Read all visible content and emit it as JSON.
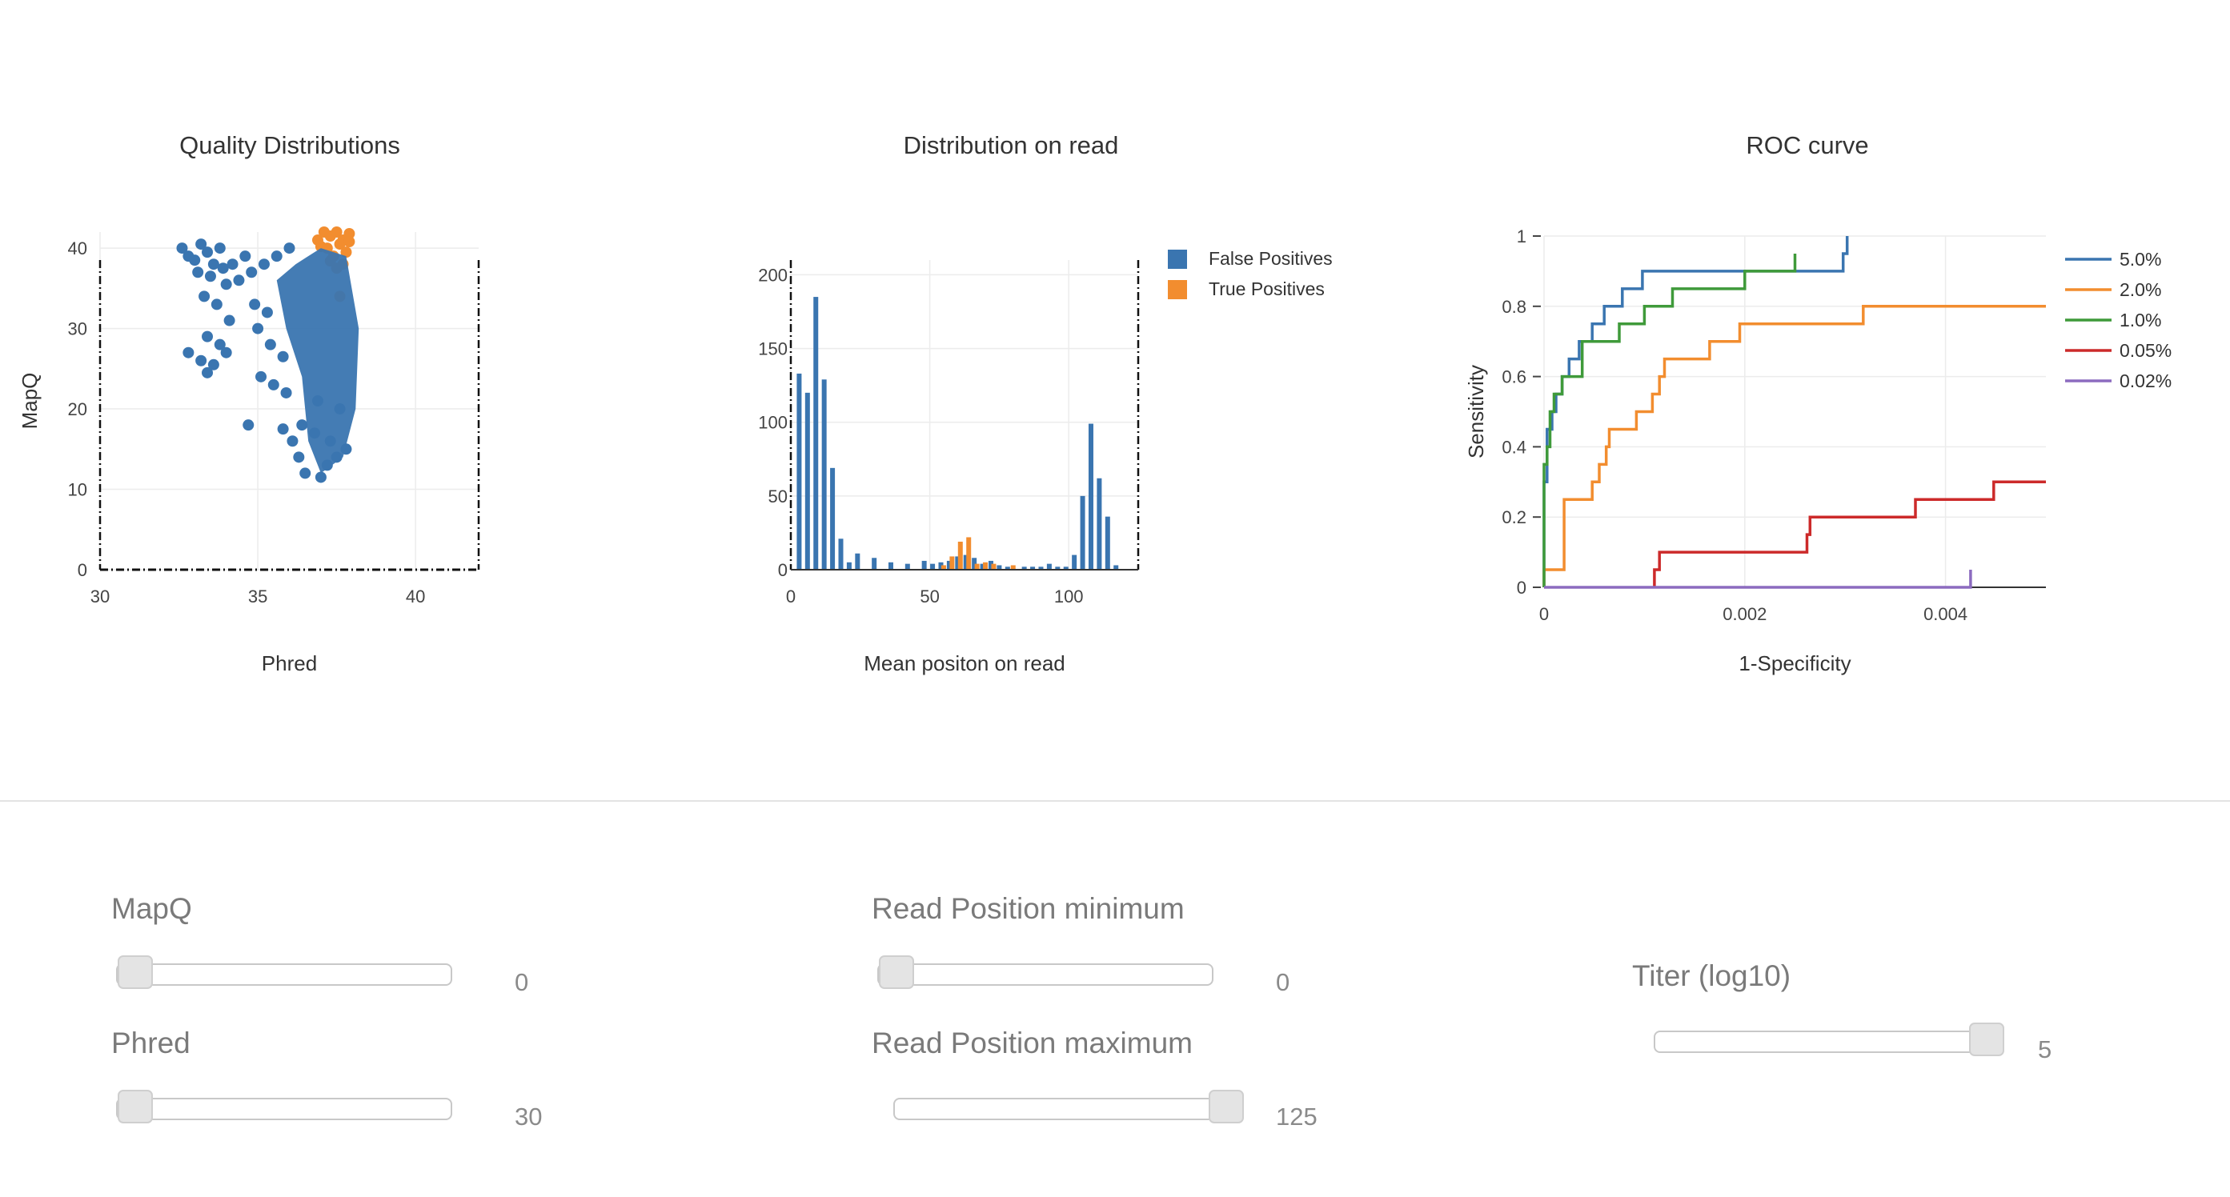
{
  "colors": {
    "blue": "#3a75b0",
    "orange": "#f28d2f",
    "green": "#3f9a3a",
    "red": "#cc2a2a",
    "purple": "#8c6bbf",
    "grid": "#ececec",
    "axis": "#333333"
  },
  "chart_data": [
    {
      "type": "scatter",
      "title": "Quality Distributions",
      "xlabel": "Phred",
      "ylabel": "MapQ",
      "xlim": [
        30,
        42
      ],
      "ylim": [
        0,
        42
      ],
      "xticks": [
        30,
        35,
        40
      ],
      "yticks": [
        0,
        10,
        20,
        30,
        40
      ],
      "grid": true,
      "reference_lines": {
        "x": [
          30,
          42
        ],
        "y": [
          0
        ]
      },
      "series": [
        {
          "name": "False Positives",
          "color": "blue",
          "points": [
            [
              32.6,
              40
            ],
            [
              32.8,
              39
            ],
            [
              33.0,
              38.5
            ],
            [
              33.2,
              40.5
            ],
            [
              33.4,
              39.5
            ],
            [
              33.6,
              38
            ],
            [
              33.8,
              40
            ],
            [
              33.1,
              37
            ],
            [
              33.5,
              36.5
            ],
            [
              33.9,
              37.5
            ],
            [
              34.2,
              38
            ],
            [
              34.6,
              39
            ],
            [
              34.0,
              35.5
            ],
            [
              33.3,
              34
            ],
            [
              33.7,
              33
            ],
            [
              34.4,
              36
            ],
            [
              34.8,
              37
            ],
            [
              35.2,
              38
            ],
            [
              35.6,
              39
            ],
            [
              36.0,
              40
            ],
            [
              34.1,
              31
            ],
            [
              33.4,
              29
            ],
            [
              33.8,
              28
            ],
            [
              33.2,
              26
            ],
            [
              33.6,
              25.5
            ],
            [
              34.0,
              27
            ],
            [
              32.8,
              27
            ],
            [
              33.4,
              24.5
            ],
            [
              35.0,
              30
            ],
            [
              35.4,
              28
            ],
            [
              35.8,
              26.5
            ],
            [
              35.1,
              24
            ],
            [
              35.5,
              23
            ],
            [
              35.9,
              22
            ],
            [
              34.9,
              33
            ],
            [
              35.3,
              32
            ],
            [
              34.7,
              18
            ],
            [
              35.8,
              17.5
            ],
            [
              36.1,
              16
            ],
            [
              36.3,
              14
            ],
            [
              36.5,
              12
            ],
            [
              37.0,
              11.5
            ],
            [
              37.2,
              13
            ],
            [
              37.5,
              14
            ],
            [
              37.8,
              15
            ],
            [
              36.4,
              18
            ],
            [
              36.8,
              17
            ],
            [
              37.3,
              16
            ],
            [
              36.9,
              21
            ],
            [
              37.6,
              20
            ]
          ]
        },
        {
          "name": "True Positives",
          "color": "orange",
          "points": [
            [
              36.9,
              41
            ],
            [
              37.1,
              42
            ],
            [
              37.3,
              41.5
            ],
            [
              37.5,
              42
            ],
            [
              37.7,
              41
            ],
            [
              37.9,
              41.8
            ],
            [
              37.2,
              40
            ],
            [
              37.6,
              40.5
            ],
            [
              37.4,
              39
            ],
            [
              37.8,
              39.5
            ],
            [
              37.0,
              40.2
            ],
            [
              37.7,
              38
            ],
            [
              37.5,
              37.5
            ],
            [
              37.9,
              40.8
            ],
            [
              37.3,
              38.4
            ],
            [
              37.6,
              34
            ]
          ]
        }
      ]
    },
    {
      "type": "bar",
      "title": "Distribution on read",
      "xlabel": "Mean positon on read",
      "ylabel": "",
      "xlim": [
        0,
        125
      ],
      "ylim": [
        0,
        210
      ],
      "xticks": [
        0,
        50,
        100
      ],
      "yticks": [
        0,
        50,
        100,
        150,
        200
      ],
      "grid": true,
      "legend_position": "right",
      "reference_lines": {
        "x": [
          0,
          125
        ]
      },
      "series": [
        {
          "name": "False Positives",
          "color": "blue",
          "x": [
            3,
            6,
            9,
            12,
            15,
            18,
            21,
            24,
            30,
            36,
            42,
            48,
            51,
            54,
            57,
            60,
            63,
            66,
            69,
            72,
            75,
            78,
            84,
            87,
            90,
            93,
            96,
            99,
            102,
            105,
            108,
            111,
            114,
            117
          ],
          "values": [
            133,
            120,
            185,
            129,
            69,
            21,
            5,
            11,
            8,
            5,
            4,
            6,
            4,
            5,
            6,
            9,
            10,
            8,
            4,
            6,
            3,
            2,
            2,
            2,
            2,
            4,
            2,
            2,
            10,
            50,
            99,
            62,
            36,
            3
          ]
        },
        {
          "name": "True Positives",
          "color": "orange",
          "x": [
            55,
            58,
            61,
            64,
            67,
            70,
            73,
            80
          ],
          "values": [
            3,
            9,
            19,
            22,
            4,
            5,
            4,
            3
          ]
        }
      ]
    },
    {
      "type": "line",
      "title": "ROC curve",
      "xlabel": "1-Specificity",
      "ylabel": "Sensitivity",
      "xlim": [
        0,
        0.005
      ],
      "ylim": [
        0,
        1
      ],
      "xticks": [
        "0",
        "0.002",
        "0.004"
      ],
      "yticks": [
        "0",
        "0.2",
        "0.4",
        "0.6",
        "0.8",
        "1"
      ],
      "grid": true,
      "legend_position": "right",
      "series": [
        {
          "name": "5.0%",
          "color": "blue",
          "points": [
            [
              0,
              0
            ],
            [
              0,
              0.3
            ],
            [
              3e-05,
              0.3
            ],
            [
              3e-05,
              0.45
            ],
            [
              8e-05,
              0.45
            ],
            [
              8e-05,
              0.5
            ],
            [
              0.00012,
              0.5
            ],
            [
              0.00012,
              0.55
            ],
            [
              0.00018,
              0.55
            ],
            [
              0.00018,
              0.6
            ],
            [
              0.00025,
              0.6
            ],
            [
              0.00025,
              0.65
            ],
            [
              0.00035,
              0.65
            ],
            [
              0.00035,
              0.7
            ],
            [
              0.00048,
              0.7
            ],
            [
              0.00048,
              0.75
            ],
            [
              0.0006,
              0.75
            ],
            [
              0.0006,
              0.8
            ],
            [
              0.00078,
              0.8
            ],
            [
              0.00078,
              0.85
            ],
            [
              0.00098,
              0.85
            ],
            [
              0.00098,
              0.9
            ],
            [
              0.00298,
              0.9
            ],
            [
              0.00298,
              0.95
            ],
            [
              0.00302,
              0.95
            ],
            [
              0.00302,
              1
            ]
          ]
        },
        {
          "name": "2.0%",
          "color": "orange",
          "points": [
            [
              0,
              0
            ],
            [
              0,
              0.05
            ],
            [
              0.0002,
              0.05
            ],
            [
              0.0002,
              0.25
            ],
            [
              0.00048,
              0.25
            ],
            [
              0.00048,
              0.3
            ],
            [
              0.00055,
              0.3
            ],
            [
              0.00055,
              0.35
            ],
            [
              0.00062,
              0.35
            ],
            [
              0.00062,
              0.4
            ],
            [
              0.00065,
              0.4
            ],
            [
              0.00065,
              0.45
            ],
            [
              0.00092,
              0.45
            ],
            [
              0.00092,
              0.5
            ],
            [
              0.00108,
              0.5
            ],
            [
              0.00108,
              0.55
            ],
            [
              0.00115,
              0.55
            ],
            [
              0.00115,
              0.6
            ],
            [
              0.0012,
              0.6
            ],
            [
              0.0012,
              0.65
            ],
            [
              0.00165,
              0.65
            ],
            [
              0.00165,
              0.7
            ],
            [
              0.00195,
              0.7
            ],
            [
              0.00195,
              0.75
            ],
            [
              0.00318,
              0.75
            ],
            [
              0.00318,
              0.8
            ],
            [
              0.005,
              0.8
            ]
          ]
        },
        {
          "name": "1.0%",
          "color": "green",
          "points": [
            [
              0,
              0
            ],
            [
              0,
              0.35
            ],
            [
              3e-05,
              0.35
            ],
            [
              3e-05,
              0.4
            ],
            [
              6e-05,
              0.4
            ],
            [
              6e-05,
              0.5
            ],
            [
              0.0001,
              0.5
            ],
            [
              0.0001,
              0.55
            ],
            [
              0.00018,
              0.55
            ],
            [
              0.00018,
              0.6
            ],
            [
              0.00038,
              0.6
            ],
            [
              0.00038,
              0.7
            ],
            [
              0.00075,
              0.7
            ],
            [
              0.00075,
              0.75
            ],
            [
              0.001,
              0.75
            ],
            [
              0.001,
              0.8
            ],
            [
              0.00128,
              0.8
            ],
            [
              0.00128,
              0.85
            ],
            [
              0.002,
              0.85
            ],
            [
              0.002,
              0.9
            ],
            [
              0.0025,
              0.9
            ],
            [
              0.0025,
              0.95
            ]
          ]
        },
        {
          "name": "0.05%",
          "color": "red",
          "points": [
            [
              0.0011,
              0
            ],
            [
              0.0011,
              0.05
            ],
            [
              0.00115,
              0.05
            ],
            [
              0.00115,
              0.1
            ],
            [
              0.00262,
              0.1
            ],
            [
              0.00262,
              0.15
            ],
            [
              0.00265,
              0.15
            ],
            [
              0.00265,
              0.2
            ],
            [
              0.0037,
              0.2
            ],
            [
              0.0037,
              0.25
            ],
            [
              0.00448,
              0.25
            ],
            [
              0.00448,
              0.3
            ],
            [
              0.005,
              0.3
            ]
          ]
        },
        {
          "name": "0.02%",
          "color": "purple",
          "points": [
            [
              0,
              0
            ],
            [
              0.00425,
              0
            ],
            [
              0.00425,
              0.05
            ]
          ]
        }
      ]
    }
  ],
  "controls": {
    "mapq": {
      "label": "MapQ",
      "value": "0"
    },
    "phred": {
      "label": "Phred",
      "value": "30"
    },
    "read_min": {
      "label": "Read Position minimum",
      "value": "0"
    },
    "read_max": {
      "label": "Read Position maximum",
      "value": "125"
    },
    "titer": {
      "label": "Titer (log10)",
      "value": "5"
    }
  },
  "slider_levels": {
    "mapq": 0,
    "phred": 0,
    "read_min": 0,
    "read_max": 1,
    "titer": 1
  }
}
